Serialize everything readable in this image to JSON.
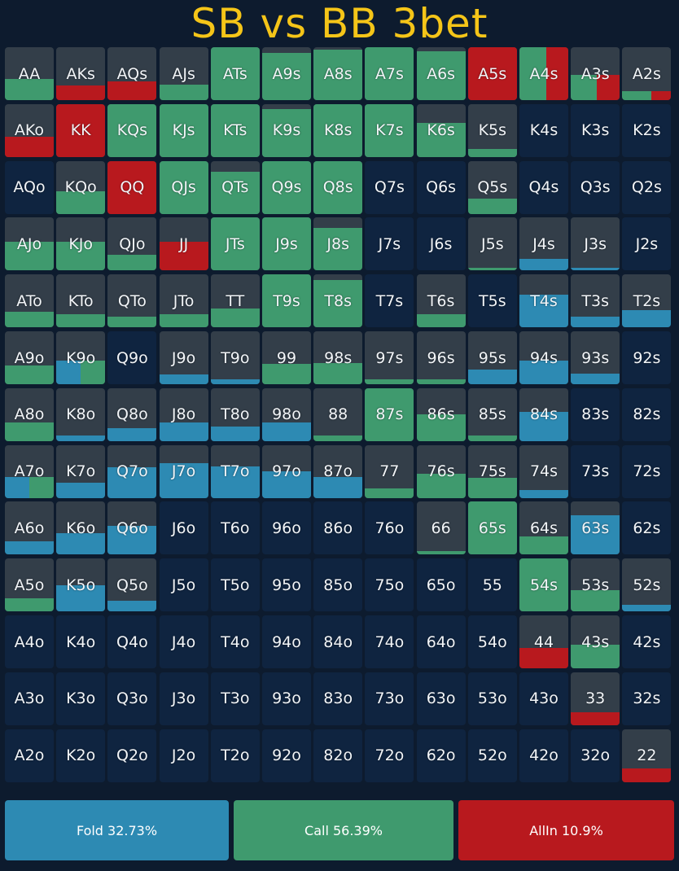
{
  "title": "SB vs BB 3bet",
  "colors": {
    "fold": "#2d8ab3",
    "call": "#3f9a6e",
    "allin": "#b8191e",
    "empty": "#0f2440",
    "played": "#333e49",
    "title": "#f5c518"
  },
  "legend": [
    {
      "action": "fold",
      "label": "Fold 32.73%"
    },
    {
      "action": "call",
      "label": "Call 56.39%"
    },
    {
      "action": "allin",
      "label": "AllIn 10.9%"
    }
  ],
  "rows": [
    [
      {
        "hand": "AA",
        "fold": 0,
        "call": 0.4,
        "allin": 0
      },
      {
        "hand": "AKs",
        "fold": 0,
        "call": 0,
        "allin": 0.28
      },
      {
        "hand": "AQs",
        "fold": 0,
        "call": 0,
        "allin": 0.35
      },
      {
        "hand": "AJs",
        "fold": 0,
        "call": 0.3,
        "allin": 0
      },
      {
        "hand": "ATs",
        "fold": 0,
        "call": 1,
        "allin": 0
      },
      {
        "hand": "A9s",
        "fold": 0,
        "call": 0.9,
        "allin": 0
      },
      {
        "hand": "A8s",
        "fold": 0,
        "call": 0.95,
        "allin": 0
      },
      {
        "hand": "A7s",
        "fold": 0,
        "call": 1,
        "allin": 0
      },
      {
        "hand": "A6s",
        "fold": 0,
        "call": 0.92,
        "allin": 0
      },
      {
        "hand": "A5s",
        "fold": 0,
        "call": 0,
        "allin": 1
      },
      {
        "hand": "A4s",
        "fold": 0,
        "call": 0.55,
        "allin": 0.45
      },
      {
        "hand": "A3s",
        "fold": 0,
        "call": 0.25,
        "allin": 0.22
      },
      {
        "hand": "A2s",
        "fold": 0,
        "call": 0.1,
        "allin": 0.07
      }
    ],
    [
      {
        "hand": "AKo",
        "fold": 0,
        "call": 0,
        "allin": 0.38
      },
      {
        "hand": "KK",
        "fold": 0,
        "call": 0,
        "allin": 1
      },
      {
        "hand": "KQs",
        "fold": 0,
        "call": 1,
        "allin": 0
      },
      {
        "hand": "KJs",
        "fold": 0,
        "call": 1,
        "allin": 0
      },
      {
        "hand": "KTs",
        "fold": 0,
        "call": 1,
        "allin": 0
      },
      {
        "hand": "K9s",
        "fold": 0,
        "call": 0.9,
        "allin": 0
      },
      {
        "hand": "K8s",
        "fold": 0,
        "call": 1,
        "allin": 0
      },
      {
        "hand": "K7s",
        "fold": 0,
        "call": 1,
        "allin": 0
      },
      {
        "hand": "K6s",
        "fold": 0,
        "call": 0.65,
        "allin": 0
      },
      {
        "hand": "K5s",
        "fold": 0,
        "call": 0.15,
        "allin": 0
      },
      {
        "hand": "K4s",
        "fold": 0,
        "call": 0,
        "allin": 0
      },
      {
        "hand": "K3s",
        "fold": 0,
        "call": 0,
        "allin": 0
      },
      {
        "hand": "K2s",
        "fold": 0,
        "call": 0,
        "allin": 0
      }
    ],
    [
      {
        "hand": "AQo",
        "fold": 0,
        "call": 0,
        "allin": 0
      },
      {
        "hand": "KQo",
        "fold": 0,
        "call": 0.42,
        "allin": 0
      },
      {
        "hand": "QQ",
        "fold": 0,
        "call": 0,
        "allin": 1
      },
      {
        "hand": "QJs",
        "fold": 0,
        "call": 1,
        "allin": 0
      },
      {
        "hand": "QTs",
        "fold": 0,
        "call": 0.8,
        "allin": 0
      },
      {
        "hand": "Q9s",
        "fold": 0,
        "call": 1,
        "allin": 0
      },
      {
        "hand": "Q8s",
        "fold": 0,
        "call": 1,
        "allin": 0
      },
      {
        "hand": "Q7s",
        "fold": 0,
        "call": 0,
        "allin": 0
      },
      {
        "hand": "Q6s",
        "fold": 0,
        "call": 0,
        "allin": 0
      },
      {
        "hand": "Q5s",
        "fold": 0,
        "call": 0.28,
        "allin": 0
      },
      {
        "hand": "Q4s",
        "fold": 0,
        "call": 0,
        "allin": 0
      },
      {
        "hand": "Q3s",
        "fold": 0,
        "call": 0,
        "allin": 0
      },
      {
        "hand": "Q2s",
        "fold": 0,
        "call": 0,
        "allin": 0
      }
    ],
    [
      {
        "hand": "AJo",
        "fold": 0,
        "call": 0.55,
        "allin": 0
      },
      {
        "hand": "KJo",
        "fold": 0,
        "call": 0.55,
        "allin": 0
      },
      {
        "hand": "QJo",
        "fold": 0,
        "call": 0.3,
        "allin": 0
      },
      {
        "hand": "JJ",
        "fold": 0,
        "call": 0,
        "allin": 0.55
      },
      {
        "hand": "JTs",
        "fold": 0,
        "call": 1,
        "allin": 0
      },
      {
        "hand": "J9s",
        "fold": 0,
        "call": 1,
        "allin": 0
      },
      {
        "hand": "J8s",
        "fold": 0,
        "call": 0.8,
        "allin": 0
      },
      {
        "hand": "J7s",
        "fold": 0,
        "call": 0,
        "allin": 0
      },
      {
        "hand": "J6s",
        "fold": 0,
        "call": 0,
        "allin": 0
      },
      {
        "hand": "J5s",
        "fold": 0,
        "call": 0.05,
        "allin": 0
      },
      {
        "hand": "J4s",
        "fold": 0.22,
        "call": 0,
        "allin": 0
      },
      {
        "hand": "J3s",
        "fold": 0.05,
        "call": 0,
        "allin": 0
      },
      {
        "hand": "J2s",
        "fold": 0,
        "call": 0,
        "allin": 0
      }
    ],
    [
      {
        "hand": "ATo",
        "fold": 0,
        "call": 0.3,
        "allin": 0
      },
      {
        "hand": "KTo",
        "fold": 0,
        "call": 0.25,
        "allin": 0
      },
      {
        "hand": "QTo",
        "fold": 0,
        "call": 0.2,
        "allin": 0
      },
      {
        "hand": "JTo",
        "fold": 0,
        "call": 0.25,
        "allin": 0
      },
      {
        "hand": "TT",
        "fold": 0,
        "call": 0.35,
        "allin": 0
      },
      {
        "hand": "T9s",
        "fold": 0,
        "call": 1,
        "allin": 0
      },
      {
        "hand": "T8s",
        "fold": 0,
        "call": 0.9,
        "allin": 0
      },
      {
        "hand": "T7s",
        "fold": 0,
        "call": 0,
        "allin": 0
      },
      {
        "hand": "T6s",
        "fold": 0,
        "call": 0.25,
        "allin": 0
      },
      {
        "hand": "T5s",
        "fold": 0,
        "call": 0,
        "allin": 0
      },
      {
        "hand": "T4s",
        "fold": 0.62,
        "call": 0,
        "allin": 0
      },
      {
        "hand": "T3s",
        "fold": 0.2,
        "call": 0,
        "allin": 0
      },
      {
        "hand": "T2s",
        "fold": 0.32,
        "call": 0,
        "allin": 0
      }
    ],
    [
      {
        "hand": "A9o",
        "fold": 0,
        "call": 0.35,
        "allin": 0
      },
      {
        "hand": "K9o",
        "fold": 0.22,
        "call": 0.22,
        "allin": 0
      },
      {
        "hand": "Q9o",
        "fold": 0,
        "call": 0,
        "allin": 0
      },
      {
        "hand": "J9o",
        "fold": 0.18,
        "call": 0,
        "allin": 0
      },
      {
        "hand": "T9o",
        "fold": 0.1,
        "call": 0,
        "allin": 0
      },
      {
        "hand": "99",
        "fold": 0,
        "call": 0.38,
        "allin": 0
      },
      {
        "hand": "98s",
        "fold": 0,
        "call": 0.4,
        "allin": 0
      },
      {
        "hand": "97s",
        "fold": 0,
        "call": 0.1,
        "allin": 0
      },
      {
        "hand": "96s",
        "fold": 0,
        "call": 0.1,
        "allin": 0
      },
      {
        "hand": "95s",
        "fold": 0.28,
        "call": 0,
        "allin": 0
      },
      {
        "hand": "94s",
        "fold": 0.45,
        "call": 0,
        "allin": 0
      },
      {
        "hand": "93s",
        "fold": 0.2,
        "call": 0,
        "allin": 0
      },
      {
        "hand": "92s",
        "fold": 0,
        "call": 0,
        "allin": 0
      }
    ],
    [
      {
        "hand": "A8o",
        "fold": 0,
        "call": 0.35,
        "allin": 0
      },
      {
        "hand": "K8o",
        "fold": 0.1,
        "call": 0,
        "allin": 0
      },
      {
        "hand": "Q8o",
        "fold": 0.25,
        "call": 0,
        "allin": 0
      },
      {
        "hand": "J8o",
        "fold": 0.35,
        "call": 0,
        "allin": 0
      },
      {
        "hand": "T8o",
        "fold": 0.28,
        "call": 0,
        "allin": 0
      },
      {
        "hand": "98o",
        "fold": 0.35,
        "call": 0,
        "allin": 0
      },
      {
        "hand": "88",
        "fold": 0,
        "call": 0.1,
        "allin": 0
      },
      {
        "hand": "87s",
        "fold": 0,
        "call": 1,
        "allin": 0
      },
      {
        "hand": "86s",
        "fold": 0,
        "call": 0.5,
        "allin": 0
      },
      {
        "hand": "85s",
        "fold": 0,
        "call": 0.1,
        "allin": 0
      },
      {
        "hand": "84s",
        "fold": 0.55,
        "call": 0,
        "allin": 0
      },
      {
        "hand": "83s",
        "fold": 0,
        "call": 0,
        "allin": 0
      },
      {
        "hand": "82s",
        "fold": 0,
        "call": 0,
        "allin": 0
      }
    ],
    [
      {
        "hand": "A7o",
        "fold": 0.2,
        "call": 0.2,
        "allin": 0
      },
      {
        "hand": "K7o",
        "fold": 0.28,
        "call": 0,
        "allin": 0
      },
      {
        "hand": "Q7o",
        "fold": 0.58,
        "call": 0,
        "allin": 0
      },
      {
        "hand": "J7o",
        "fold": 0.65,
        "call": 0,
        "allin": 0
      },
      {
        "hand": "T7o",
        "fold": 0.6,
        "call": 0,
        "allin": 0
      },
      {
        "hand": "97o",
        "fold": 0.5,
        "call": 0,
        "allin": 0
      },
      {
        "hand": "87o",
        "fold": 0.4,
        "call": 0,
        "allin": 0
      },
      {
        "hand": "77",
        "fold": 0,
        "call": 0.18,
        "allin": 0
      },
      {
        "hand": "76s",
        "fold": 0,
        "call": 0.45,
        "allin": 0
      },
      {
        "hand": "75s",
        "fold": 0,
        "call": 0.38,
        "allin": 0
      },
      {
        "hand": "74s",
        "fold": 0.15,
        "call": 0,
        "allin": 0
      },
      {
        "hand": "73s",
        "fold": 0,
        "call": 0,
        "allin": 0
      },
      {
        "hand": "72s",
        "fold": 0,
        "call": 0,
        "allin": 0
      }
    ],
    [
      {
        "hand": "A6o",
        "fold": 0.25,
        "call": 0,
        "allin": 0
      },
      {
        "hand": "K6o",
        "fold": 0.4,
        "call": 0,
        "allin": 0
      },
      {
        "hand": "Q6o",
        "fold": 0.55,
        "call": 0,
        "allin": 0
      },
      {
        "hand": "J6o",
        "fold": 0,
        "call": 0,
        "allin": 0
      },
      {
        "hand": "T6o",
        "fold": 0,
        "call": 0,
        "allin": 0
      },
      {
        "hand": "96o",
        "fold": 0,
        "call": 0,
        "allin": 0
      },
      {
        "hand": "86o",
        "fold": 0,
        "call": 0,
        "allin": 0
      },
      {
        "hand": "76o",
        "fold": 0,
        "call": 0,
        "allin": 0
      },
      {
        "hand": "66",
        "fold": 0,
        "call": 0.07,
        "allin": 0
      },
      {
        "hand": "65s",
        "fold": 0,
        "call": 1,
        "allin": 0
      },
      {
        "hand": "64s",
        "fold": 0,
        "call": 0.35,
        "allin": 0
      },
      {
        "hand": "63s",
        "fold": 0.75,
        "call": 0,
        "allin": 0
      },
      {
        "hand": "62s",
        "fold": 0,
        "call": 0,
        "allin": 0
      }
    ],
    [
      {
        "hand": "A5o",
        "fold": 0,
        "call": 0.25,
        "allin": 0
      },
      {
        "hand": "K5o",
        "fold": 0.5,
        "call": 0,
        "allin": 0
      },
      {
        "hand": "Q5o",
        "fold": 0.2,
        "call": 0,
        "allin": 0
      },
      {
        "hand": "J5o",
        "fold": 0,
        "call": 0,
        "allin": 0
      },
      {
        "hand": "T5o",
        "fold": 0,
        "call": 0,
        "allin": 0
      },
      {
        "hand": "95o",
        "fold": 0,
        "call": 0,
        "allin": 0
      },
      {
        "hand": "85o",
        "fold": 0,
        "call": 0,
        "allin": 0
      },
      {
        "hand": "75o",
        "fold": 0,
        "call": 0,
        "allin": 0
      },
      {
        "hand": "65o",
        "fold": 0,
        "call": 0,
        "allin": 0
      },
      {
        "hand": "55",
        "fold": 0,
        "call": 0,
        "allin": 0
      },
      {
        "hand": "54s",
        "fold": 0,
        "call": 1,
        "allin": 0
      },
      {
        "hand": "53s",
        "fold": 0,
        "call": 0.4,
        "allin": 0
      },
      {
        "hand": "52s",
        "fold": 0.12,
        "call": 0,
        "allin": 0
      }
    ],
    [
      {
        "hand": "A4o",
        "fold": 0,
        "call": 0,
        "allin": 0
      },
      {
        "hand": "K4o",
        "fold": 0,
        "call": 0,
        "allin": 0
      },
      {
        "hand": "Q4o",
        "fold": 0,
        "call": 0,
        "allin": 0
      },
      {
        "hand": "J4o",
        "fold": 0,
        "call": 0,
        "allin": 0
      },
      {
        "hand": "T4o",
        "fold": 0,
        "call": 0,
        "allin": 0
      },
      {
        "hand": "94o",
        "fold": 0,
        "call": 0,
        "allin": 0
      },
      {
        "hand": "84o",
        "fold": 0,
        "call": 0,
        "allin": 0
      },
      {
        "hand": "74o",
        "fold": 0,
        "call": 0,
        "allin": 0
      },
      {
        "hand": "64o",
        "fold": 0,
        "call": 0,
        "allin": 0
      },
      {
        "hand": "54o",
        "fold": 0,
        "call": 0,
        "allin": 0
      },
      {
        "hand": "44",
        "fold": 0,
        "call": 0,
        "allin": 0.38
      },
      {
        "hand": "43s",
        "fold": 0,
        "call": 0.45,
        "allin": 0
      },
      {
        "hand": "42s",
        "fold": 0,
        "call": 0,
        "allin": 0
      }
    ],
    [
      {
        "hand": "A3o",
        "fold": 0,
        "call": 0,
        "allin": 0
      },
      {
        "hand": "K3o",
        "fold": 0,
        "call": 0,
        "allin": 0
      },
      {
        "hand": "Q3o",
        "fold": 0,
        "call": 0,
        "allin": 0
      },
      {
        "hand": "J3o",
        "fold": 0,
        "call": 0,
        "allin": 0
      },
      {
        "hand": "T3o",
        "fold": 0,
        "call": 0,
        "allin": 0
      },
      {
        "hand": "93o",
        "fold": 0,
        "call": 0,
        "allin": 0
      },
      {
        "hand": "83o",
        "fold": 0,
        "call": 0,
        "allin": 0
      },
      {
        "hand": "73o",
        "fold": 0,
        "call": 0,
        "allin": 0
      },
      {
        "hand": "63o",
        "fold": 0,
        "call": 0,
        "allin": 0
      },
      {
        "hand": "53o",
        "fold": 0,
        "call": 0,
        "allin": 0
      },
      {
        "hand": "43o",
        "fold": 0,
        "call": 0,
        "allin": 0
      },
      {
        "hand": "33",
        "fold": 0,
        "call": 0,
        "allin": 0.25
      },
      {
        "hand": "32s",
        "fold": 0,
        "call": 0,
        "allin": 0
      }
    ],
    [
      {
        "hand": "A2o",
        "fold": 0,
        "call": 0,
        "allin": 0
      },
      {
        "hand": "K2o",
        "fold": 0,
        "call": 0,
        "allin": 0
      },
      {
        "hand": "Q2o",
        "fold": 0,
        "call": 0,
        "allin": 0
      },
      {
        "hand": "J2o",
        "fold": 0,
        "call": 0,
        "allin": 0
      },
      {
        "hand": "T2o",
        "fold": 0,
        "call": 0,
        "allin": 0
      },
      {
        "hand": "92o",
        "fold": 0,
        "call": 0,
        "allin": 0
      },
      {
        "hand": "82o",
        "fold": 0,
        "call": 0,
        "allin": 0
      },
      {
        "hand": "72o",
        "fold": 0,
        "call": 0,
        "allin": 0
      },
      {
        "hand": "62o",
        "fold": 0,
        "call": 0,
        "allin": 0
      },
      {
        "hand": "52o",
        "fold": 0,
        "call": 0,
        "allin": 0
      },
      {
        "hand": "42o",
        "fold": 0,
        "call": 0,
        "allin": 0
      },
      {
        "hand": "32o",
        "fold": 0,
        "call": 0,
        "allin": 0
      },
      {
        "hand": "22",
        "fold": 0,
        "call": 0,
        "allin": 0.25
      }
    ]
  ]
}
